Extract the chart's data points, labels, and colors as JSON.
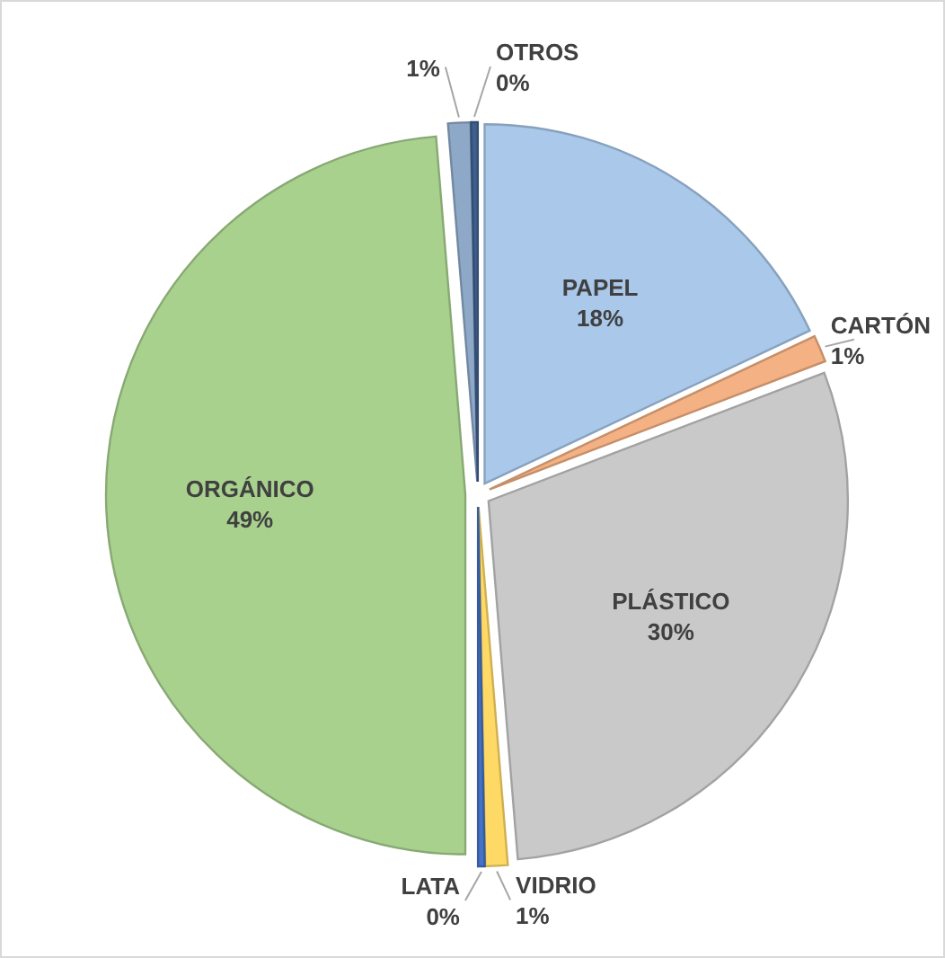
{
  "chart_data": {
    "type": "pie",
    "categories": [
      "PAPEL",
      "CARTÓN",
      "PLÁSTICO",
      "VIDRIO",
      "LATA",
      "ORGÁNICO",
      null,
      "OTROS"
    ],
    "values": [
      18,
      1.2,
      29.5,
      1,
      0.3,
      48.7,
      1,
      0.3
    ],
    "value_labels": [
      "18%",
      "1%",
      "30%",
      "1%",
      "0%",
      "49%",
      "1%",
      "0%"
    ],
    "colors": [
      "#a9c8ea",
      "#f4b183",
      "#c9c9c9",
      "#ffd966",
      "#4472c4",
      "#a9d18e",
      "#8ea9c8",
      "#3f5f8f"
    ]
  }
}
